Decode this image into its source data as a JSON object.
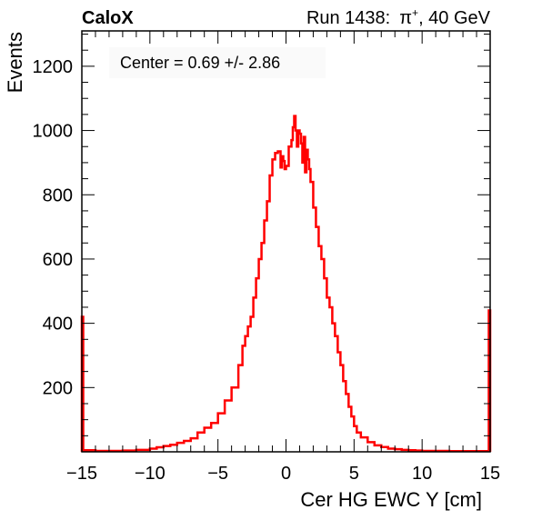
{
  "header": {
    "left": "CaloX",
    "right_prefix": "Run 1438:",
    "right_particle": "π",
    "right_charge": "+",
    "right_suffix": ", 40 GeV"
  },
  "annotation": "Center = 0.69 +/- 2.86",
  "chart_data": {
    "type": "line",
    "style": "step-histogram",
    "xlabel": "Cer HG EWC Y [cm]",
    "ylabel": "Events",
    "xlim": [
      -15,
      15
    ],
    "ylim": [
      0,
      1310
    ],
    "x_ticks": [
      -15,
      -10,
      -5,
      0,
      5,
      10,
      15
    ],
    "x_tick_labels": [
      "−15",
      "−10",
      "−5",
      "0",
      "5",
      "10",
      "15"
    ],
    "y_ticks": [
      200,
      400,
      600,
      800,
      1000,
      1200
    ],
    "y_tick_labels": [
      "200",
      "400",
      "600",
      "800",
      "1000",
      "1200"
    ],
    "grid": false,
    "legend": "none",
    "line_color": "#ff0000",
    "bin_width": 0.1,
    "series": [
      {
        "x": [
          -15.0,
          -14.9,
          -14.0,
          -13.0,
          -12.0,
          -11.0,
          -10.0,
          -9.5,
          -9.0,
          -8.5,
          -8.0,
          -7.5,
          -7.0,
          -6.5,
          -6.0,
          -5.5,
          -5.0,
          -4.5,
          -4.0,
          -3.5,
          -3.2,
          -3.0,
          -2.8,
          -2.6,
          -2.4,
          -2.2,
          -2.0,
          -1.8,
          -1.6,
          -1.4,
          -1.2,
          -1.0,
          -0.8,
          -0.6,
          -0.4,
          -0.3,
          -0.2,
          -0.1,
          0.0,
          0.2,
          0.4,
          0.5,
          0.6,
          0.7,
          0.8,
          0.9,
          1.0,
          1.1,
          1.2,
          1.3,
          1.4,
          1.5,
          1.6,
          1.7,
          1.8,
          2.0,
          2.2,
          2.4,
          2.6,
          2.8,
          3.0,
          3.2,
          3.4,
          3.6,
          3.8,
          4.0,
          4.2,
          4.4,
          4.6,
          4.8,
          5.0,
          5.2,
          5.5,
          6.0,
          6.5,
          7.0,
          7.5,
          8.0,
          8.5,
          9.0,
          9.5,
          10.0,
          11.0,
          12.0,
          13.0,
          14.0,
          14.9
        ],
        "y": [
          420,
          5,
          3,
          3,
          4,
          6,
          10,
          14,
          18,
          22,
          28,
          34,
          42,
          60,
          75,
          90,
          120,
          160,
          200,
          270,
          330,
          360,
          390,
          420,
          480,
          540,
          600,
          650,
          720,
          780,
          860,
          910,
          930,
          935,
          885,
          920,
          905,
          880,
          890,
          950,
          970,
          1010,
          1045,
          1000,
          950,
          1000,
          990,
          960,
          900,
          980,
          870,
          940,
          910,
          880,
          840,
          760,
          700,
          640,
          600,
          540,
          480,
          450,
          400,
          360,
          310,
          270,
          220,
          180,
          140,
          110,
          80,
          60,
          45,
          30,
          20,
          15,
          10,
          8,
          6,
          5,
          4,
          3,
          3,
          2,
          2,
          2,
          440
        ]
      }
    ]
  }
}
